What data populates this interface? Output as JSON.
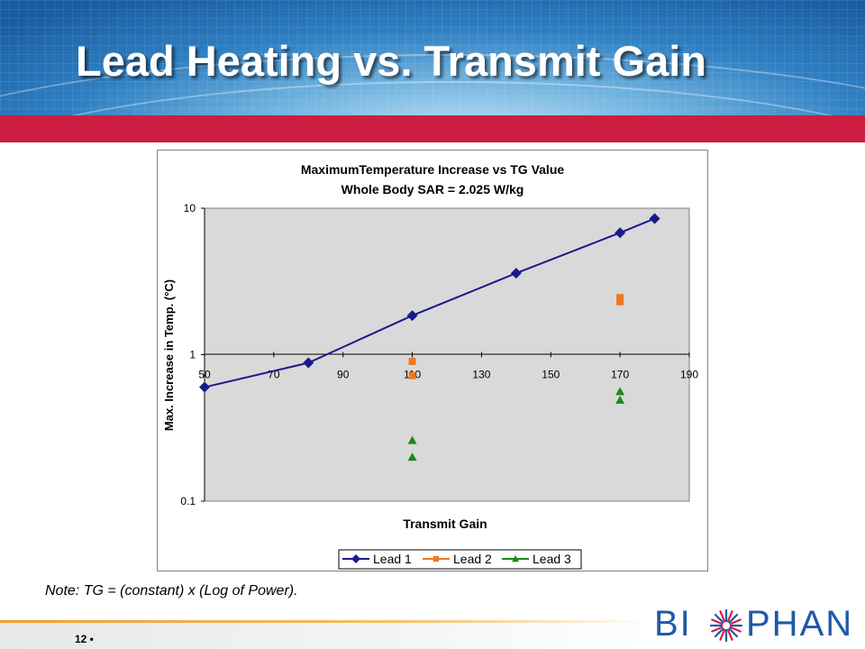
{
  "slide": {
    "title": "Lead Heating vs. Transmit Gain",
    "note": "Note: TG = (constant) x (Log of Power).",
    "page_number": "12 •",
    "logo": {
      "left": "BI",
      "right": "PHAN"
    }
  },
  "colors": {
    "header_blue": "#2f7fc2",
    "red_bar": "#cc1e41",
    "plot_bg": "#d9d9d9",
    "lead1": "#1a1a8c",
    "lead2": "#f07820",
    "lead3": "#1a8a1a",
    "logo_blue": "#1e5aa8",
    "logo_red": "#d6203a"
  },
  "chart_data": {
    "type": "scatter",
    "title": "MaximumTemperature Increase vs TG Value",
    "subtitle": "Whole Body SAR = 2.025 W/kg",
    "xlabel": "Transmit Gain",
    "ylabel": "Max. Increase in Temp. (°C)",
    "xlim": [
      50,
      190
    ],
    "ylim": [
      0.1,
      10
    ],
    "y_scale": "log",
    "x_ticks": [
      "50",
      "70",
      "90",
      "110",
      "130",
      "150",
      "170",
      "190"
    ],
    "y_ticks": [
      "0.1",
      "1",
      "10"
    ],
    "legend_position": "bottom",
    "series": [
      {
        "name": "Lead 1",
        "marker": "diamond",
        "line": true,
        "points": [
          [
            50,
            0.6
          ],
          [
            80,
            0.88
          ],
          [
            110,
            1.85
          ],
          [
            140,
            3.6
          ],
          [
            170,
            6.8
          ],
          [
            180,
            8.5
          ]
        ]
      },
      {
        "name": "Lead 2",
        "marker": "square",
        "line": false,
        "points": [
          [
            110,
            0.9
          ],
          [
            110,
            0.72
          ],
          [
            170,
            2.45
          ],
          [
            170,
            2.3
          ]
        ]
      },
      {
        "name": "Lead 3",
        "marker": "triangle",
        "line": false,
        "points": [
          [
            110,
            0.26
          ],
          [
            110,
            0.2
          ],
          [
            170,
            0.56
          ],
          [
            170,
            0.49
          ]
        ]
      }
    ]
  }
}
